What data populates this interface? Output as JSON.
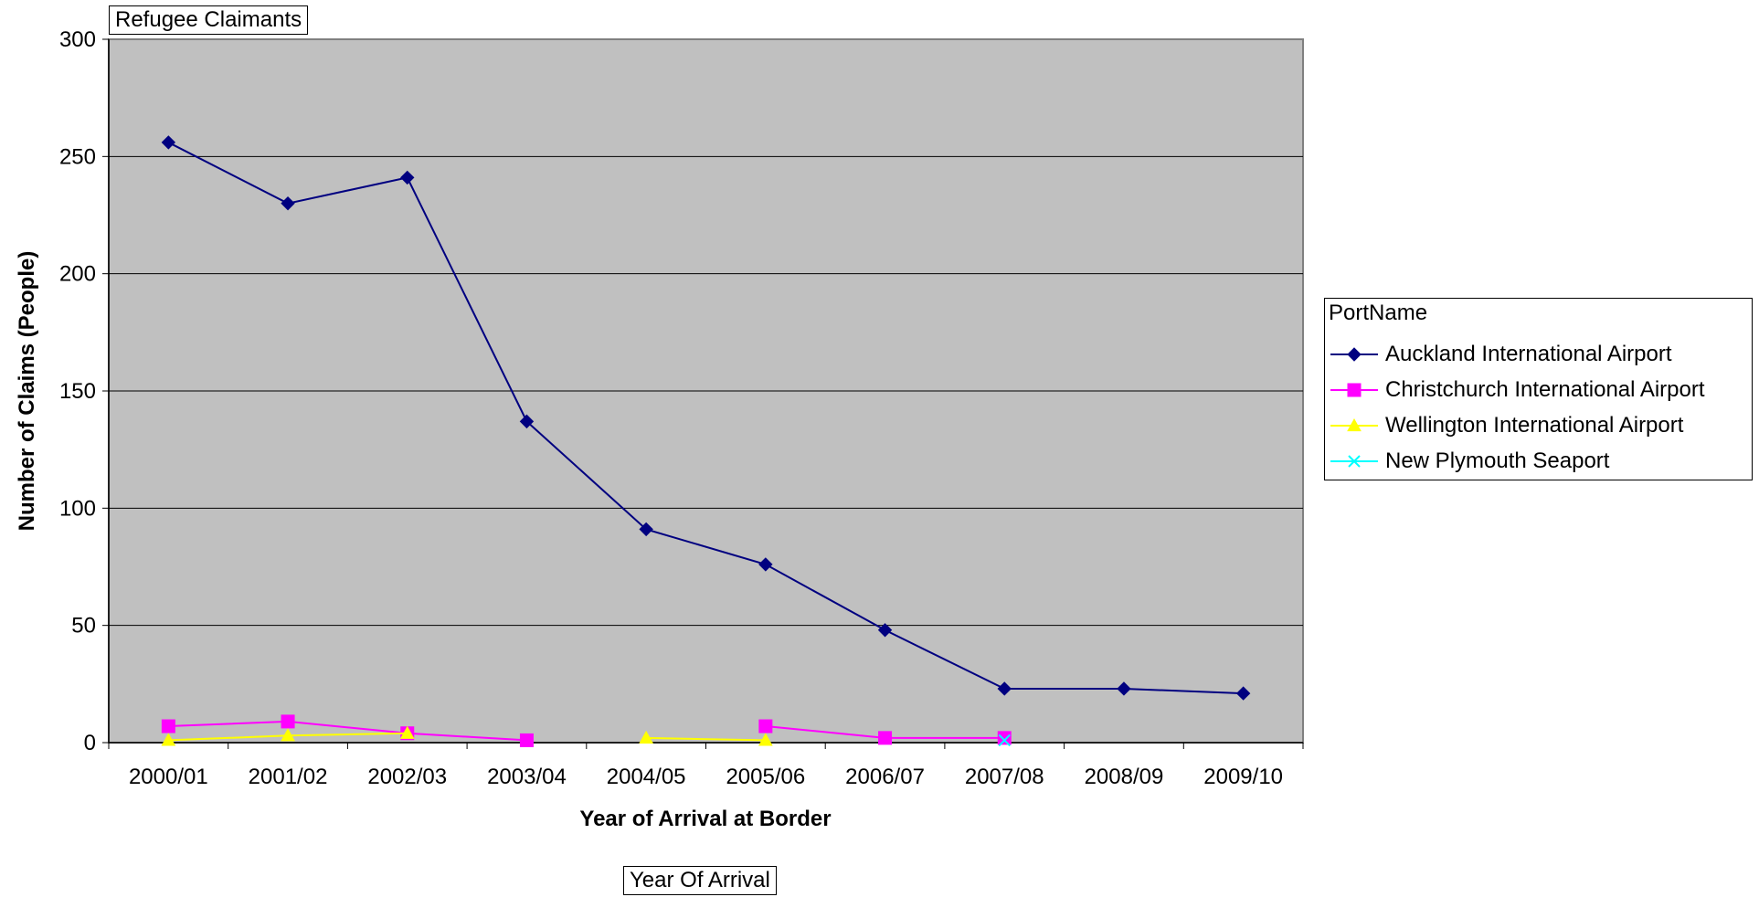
{
  "chart_data": {
    "type": "line",
    "title": "Refugee Claimants",
    "xlabel": "Year of Arrival at Border",
    "ylabel": "Number of Claims (People)",
    "footer_field": "Year Of Arrival",
    "legend_title": "PortName",
    "legend_position": "right",
    "grid": true,
    "plot_background": "#C0C0C0",
    "categories": [
      "2000/01",
      "2001/02",
      "2002/03",
      "2003/04",
      "2004/05",
      "2005/06",
      "2006/07",
      "2007/08",
      "2008/09",
      "2009/10"
    ],
    "ylim": [
      0,
      300
    ],
    "yticks": [
      0,
      50,
      100,
      150,
      200,
      250,
      300
    ],
    "series": [
      {
        "name": "Auckland International Airport",
        "color": "#000080",
        "marker": "diamond",
        "values": [
          256,
          230,
          241,
          137,
          91,
          76,
          48,
          23,
          23,
          21
        ]
      },
      {
        "name": "Christchurch International Airport",
        "color": "#FF00FF",
        "marker": "square",
        "values": [
          7,
          9,
          4,
          1,
          null,
          7,
          2,
          2,
          null,
          null
        ]
      },
      {
        "name": "Wellington International Airport",
        "color": "#FFFF00",
        "marker": "triangle",
        "values": [
          1,
          3,
          4,
          null,
          2,
          1,
          null,
          null,
          null,
          null
        ]
      },
      {
        "name": "New Plymouth Seaport",
        "color": "#00FFFF",
        "marker": "x",
        "values": [
          null,
          null,
          null,
          null,
          null,
          null,
          null,
          1,
          null,
          null
        ]
      }
    ]
  }
}
